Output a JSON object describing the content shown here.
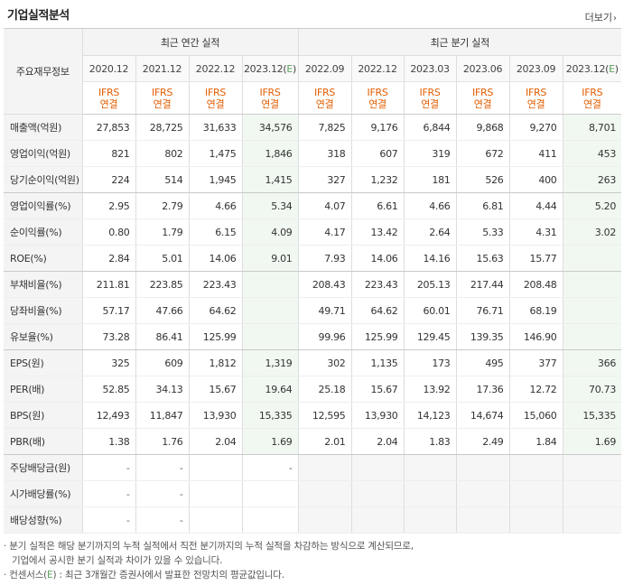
{
  "title": "기업실적분석",
  "more_label": "더보기",
  "header": {
    "row_label": "주요재무정보",
    "annual_group": "최근 연간 실적",
    "quarterly_group": "최근 분기 실적",
    "annual_periods": [
      "2020.12",
      "2021.12",
      "2022.12",
      "2023.12(E)"
    ],
    "quarterly_periods": [
      "2022.09",
      "2022.12",
      "2023.03",
      "2023.06",
      "2023.09",
      "2023.12(E)"
    ],
    "ifrs": "IFRS",
    "basis": "연결"
  },
  "rows": [
    {
      "label": "매출액(억원)",
      "values": [
        "27,853",
        "28,725",
        "31,633",
        "34,576",
        "7,825",
        "9,176",
        "6,844",
        "9,868",
        "9,270",
        "8,701"
      ]
    },
    {
      "label": "영업이익(억원)",
      "values": [
        "821",
        "802",
        "1,475",
        "1,846",
        "318",
        "607",
        "319",
        "672",
        "411",
        "453"
      ]
    },
    {
      "label": "당기순이익(억원)",
      "values": [
        "224",
        "514",
        "1,945",
        "1,415",
        "327",
        "1,232",
        "181",
        "526",
        "400",
        "263"
      ]
    },
    {
      "label": "영업이익률(%)",
      "values": [
        "2.95",
        "2.79",
        "4.66",
        "5.34",
        "4.07",
        "6.61",
        "4.66",
        "6.81",
        "4.44",
        "5.20"
      ]
    },
    {
      "label": "순이익률(%)",
      "values": [
        "0.80",
        "1.79",
        "6.15",
        "4.09",
        "4.17",
        "13.42",
        "2.64",
        "5.33",
        "4.31",
        "3.02"
      ]
    },
    {
      "label": "ROE(%)",
      "values": [
        "2.84",
        "5.01",
        "14.06",
        "9.01",
        "7.93",
        "14.06",
        "14.16",
        "15.63",
        "15.77",
        ""
      ]
    },
    {
      "label": "부채비율(%)",
      "values": [
        "211.81",
        "223.85",
        "223.43",
        "",
        "208.43",
        "223.43",
        "205.13",
        "217.44",
        "208.48",
        ""
      ]
    },
    {
      "label": "당좌비율(%)",
      "values": [
        "57.17",
        "47.66",
        "64.62",
        "",
        "49.71",
        "64.62",
        "60.01",
        "76.71",
        "68.19",
        ""
      ]
    },
    {
      "label": "유보율(%)",
      "values": [
        "73.28",
        "86.41",
        "125.99",
        "",
        "99.96",
        "125.99",
        "129.45",
        "139.35",
        "146.90",
        ""
      ]
    },
    {
      "label": "EPS(원)",
      "values": [
        "325",
        "609",
        "1,812",
        "1,319",
        "302",
        "1,135",
        "173",
        "495",
        "377",
        "366"
      ]
    },
    {
      "label": "PER(배)",
      "values": [
        "52.85",
        "34.13",
        "15.67",
        "19.64",
        "25.18",
        "15.67",
        "13.92",
        "17.36",
        "12.72",
        "70.73"
      ]
    },
    {
      "label": "BPS(원)",
      "values": [
        "12,493",
        "11,847",
        "13,930",
        "15,335",
        "12,595",
        "13,930",
        "14,123",
        "14,674",
        "15,060",
        "15,335"
      ]
    },
    {
      "label": "PBR(배)",
      "values": [
        "1.38",
        "1.76",
        "2.04",
        "1.69",
        "2.01",
        "2.04",
        "1.83",
        "2.49",
        "1.84",
        "1.69"
      ]
    },
    {
      "label": "주당배당금(원)",
      "values": [
        "-",
        "-",
        "",
        "-"
      ]
    },
    {
      "label": "시가배당률(%)",
      "values": [
        "-",
        "-",
        "",
        ""
      ]
    },
    {
      "label": "배당성향(%)",
      "values": [
        "-",
        "-",
        "",
        ""
      ]
    }
  ],
  "notes": {
    "line1": "분기 실적은 해당 분기까지의 누적 실적에서 직전 분기까지의 누적 실적을 차감하는 방식으로 계산되므로,",
    "line2": "기업에서 공시한 분기 실적과 차이가 있을 수 있습니다.",
    "line3_pre": "컨센서스(",
    "line3_e": "E",
    "line3_post": ") : 최근 3개월간 증권사에서 발표한 전망치의 평균값입니다."
  },
  "colors": {
    "ifrs": "#e35d00",
    "estimate_bg": "#f1f8f1",
    "estimate_text": "#5aa05a"
  }
}
